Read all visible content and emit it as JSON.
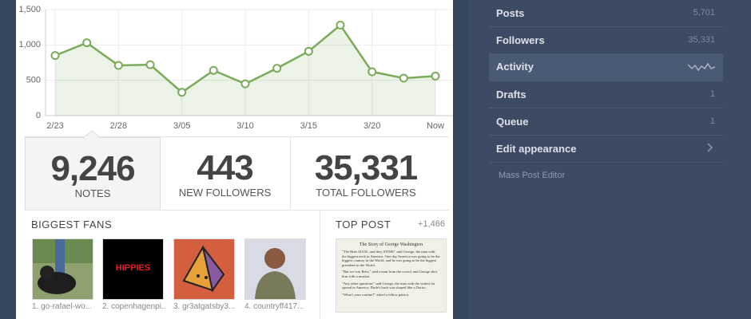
{
  "chart_data": {
    "type": "line",
    "categories": [
      "2/23",
      null,
      "2/28",
      null,
      "3/05",
      null,
      "3/10",
      null,
      "3/15",
      null,
      "3/20",
      null,
      "Now"
    ],
    "values": [
      850,
      1030,
      710,
      720,
      330,
      640,
      450,
      670,
      910,
      1280,
      620,
      530,
      560
    ],
    "color": "#7aab5a",
    "ylim": [
      0,
      1500
    ],
    "yticks": [
      0,
      500,
      {
        "value": 1000,
        "label": "1,000"
      },
      {
        "value": 1500,
        "label": "1,500"
      }
    ],
    "grid": true
  },
  "stats": [
    {
      "value": "9,246",
      "label": "NOTES"
    },
    {
      "value": "443",
      "label": "NEW FOLLOWERS"
    },
    {
      "value": "35,331",
      "label": "TOTAL FOLLOWERS"
    }
  ],
  "fans": {
    "title": "BIGGEST FANS",
    "logo_text": "HIPPIES",
    "items": [
      "1. go-rafael-wo...",
      "2. copenhagenpi...",
      "3. gr3atgatsby3...",
      "4. countryff417..."
    ]
  },
  "top_post": {
    "title": "TOP POST",
    "notes": "+1,466",
    "preview": {
      "heading": "The Story of George Washington",
      "paragraphs": [
        "\"The Brits SUCK, and they STINK\" said George, the man with the biggest neck in America. One day America was going to be the biggest country in the World, and he was going to be the biggest president in the World.",
        "\"But we was Brits,\" said a man from the crowd, and George shot him with a musket.",
        "\"Any other questions\" said George, the man with the widest fat spread in America. Dude's back was shaped like a Dorito.",
        "\"What's your routine?\" asked a fellow patriot."
      ]
    }
  },
  "sidebar": {
    "items": [
      {
        "label": "Posts",
        "count": "5,701"
      },
      {
        "label": "Followers",
        "count": "35,331"
      },
      {
        "label": "Activity"
      },
      {
        "label": "Drafts",
        "count": "1"
      },
      {
        "label": "Queue",
        "count": "1"
      },
      {
        "label": "Edit appearance"
      }
    ],
    "footer": "Mass Post Editor"
  }
}
